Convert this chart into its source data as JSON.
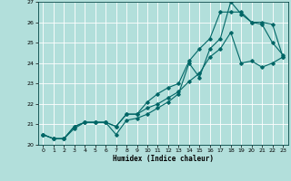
{
  "xlabel": "Humidex (Indice chaleur)",
  "ylabel": "",
  "background_color": "#b2dfdb",
  "grid_color": "#ffffff",
  "line_color": "#006666",
  "xlim": [
    -0.5,
    23.5
  ],
  "ylim": [
    20,
    27
  ],
  "xticks": [
    0,
    1,
    2,
    3,
    4,
    5,
    6,
    7,
    8,
    9,
    10,
    11,
    12,
    13,
    14,
    15,
    16,
    17,
    18,
    19,
    20,
    21,
    22,
    23
  ],
  "yticks": [
    20,
    21,
    22,
    23,
    24,
    25,
    26,
    27
  ],
  "line1_x": [
    0,
    1,
    2,
    3,
    4,
    5,
    6,
    7,
    8,
    9,
    10,
    11,
    12,
    13,
    14,
    15,
    16,
    17,
    18,
    19,
    20,
    21,
    22,
    23
  ],
  "line1_y": [
    20.5,
    20.3,
    20.3,
    20.8,
    21.1,
    21.1,
    21.1,
    20.5,
    21.2,
    21.3,
    21.5,
    21.8,
    22.1,
    22.5,
    24.0,
    23.3,
    24.7,
    25.2,
    27.0,
    26.4,
    26.0,
    25.9,
    25.0,
    24.4
  ],
  "line2_x": [
    0,
    1,
    2,
    3,
    4,
    5,
    6,
    7,
    8,
    9,
    10,
    11,
    12,
    13,
    14,
    15,
    16,
    17,
    18,
    19,
    20,
    21,
    22,
    23
  ],
  "line2_y": [
    20.5,
    20.3,
    20.3,
    20.9,
    21.1,
    21.1,
    21.1,
    20.9,
    21.5,
    21.5,
    22.1,
    22.5,
    22.8,
    23.0,
    24.1,
    24.7,
    25.2,
    26.5,
    26.5,
    26.5,
    26.0,
    26.0,
    25.9,
    24.3
  ],
  "line3_x": [
    0,
    1,
    2,
    3,
    4,
    5,
    6,
    7,
    8,
    9,
    10,
    11,
    12,
    13,
    14,
    15,
    16,
    17,
    18,
    19,
    20,
    21,
    22,
    23
  ],
  "line3_y": [
    20.5,
    20.3,
    20.3,
    20.9,
    21.1,
    21.1,
    21.1,
    20.9,
    21.5,
    21.5,
    21.8,
    22.0,
    22.3,
    22.6,
    23.1,
    23.5,
    24.3,
    24.7,
    25.5,
    24.0,
    24.1,
    23.8,
    24.0,
    24.3
  ]
}
